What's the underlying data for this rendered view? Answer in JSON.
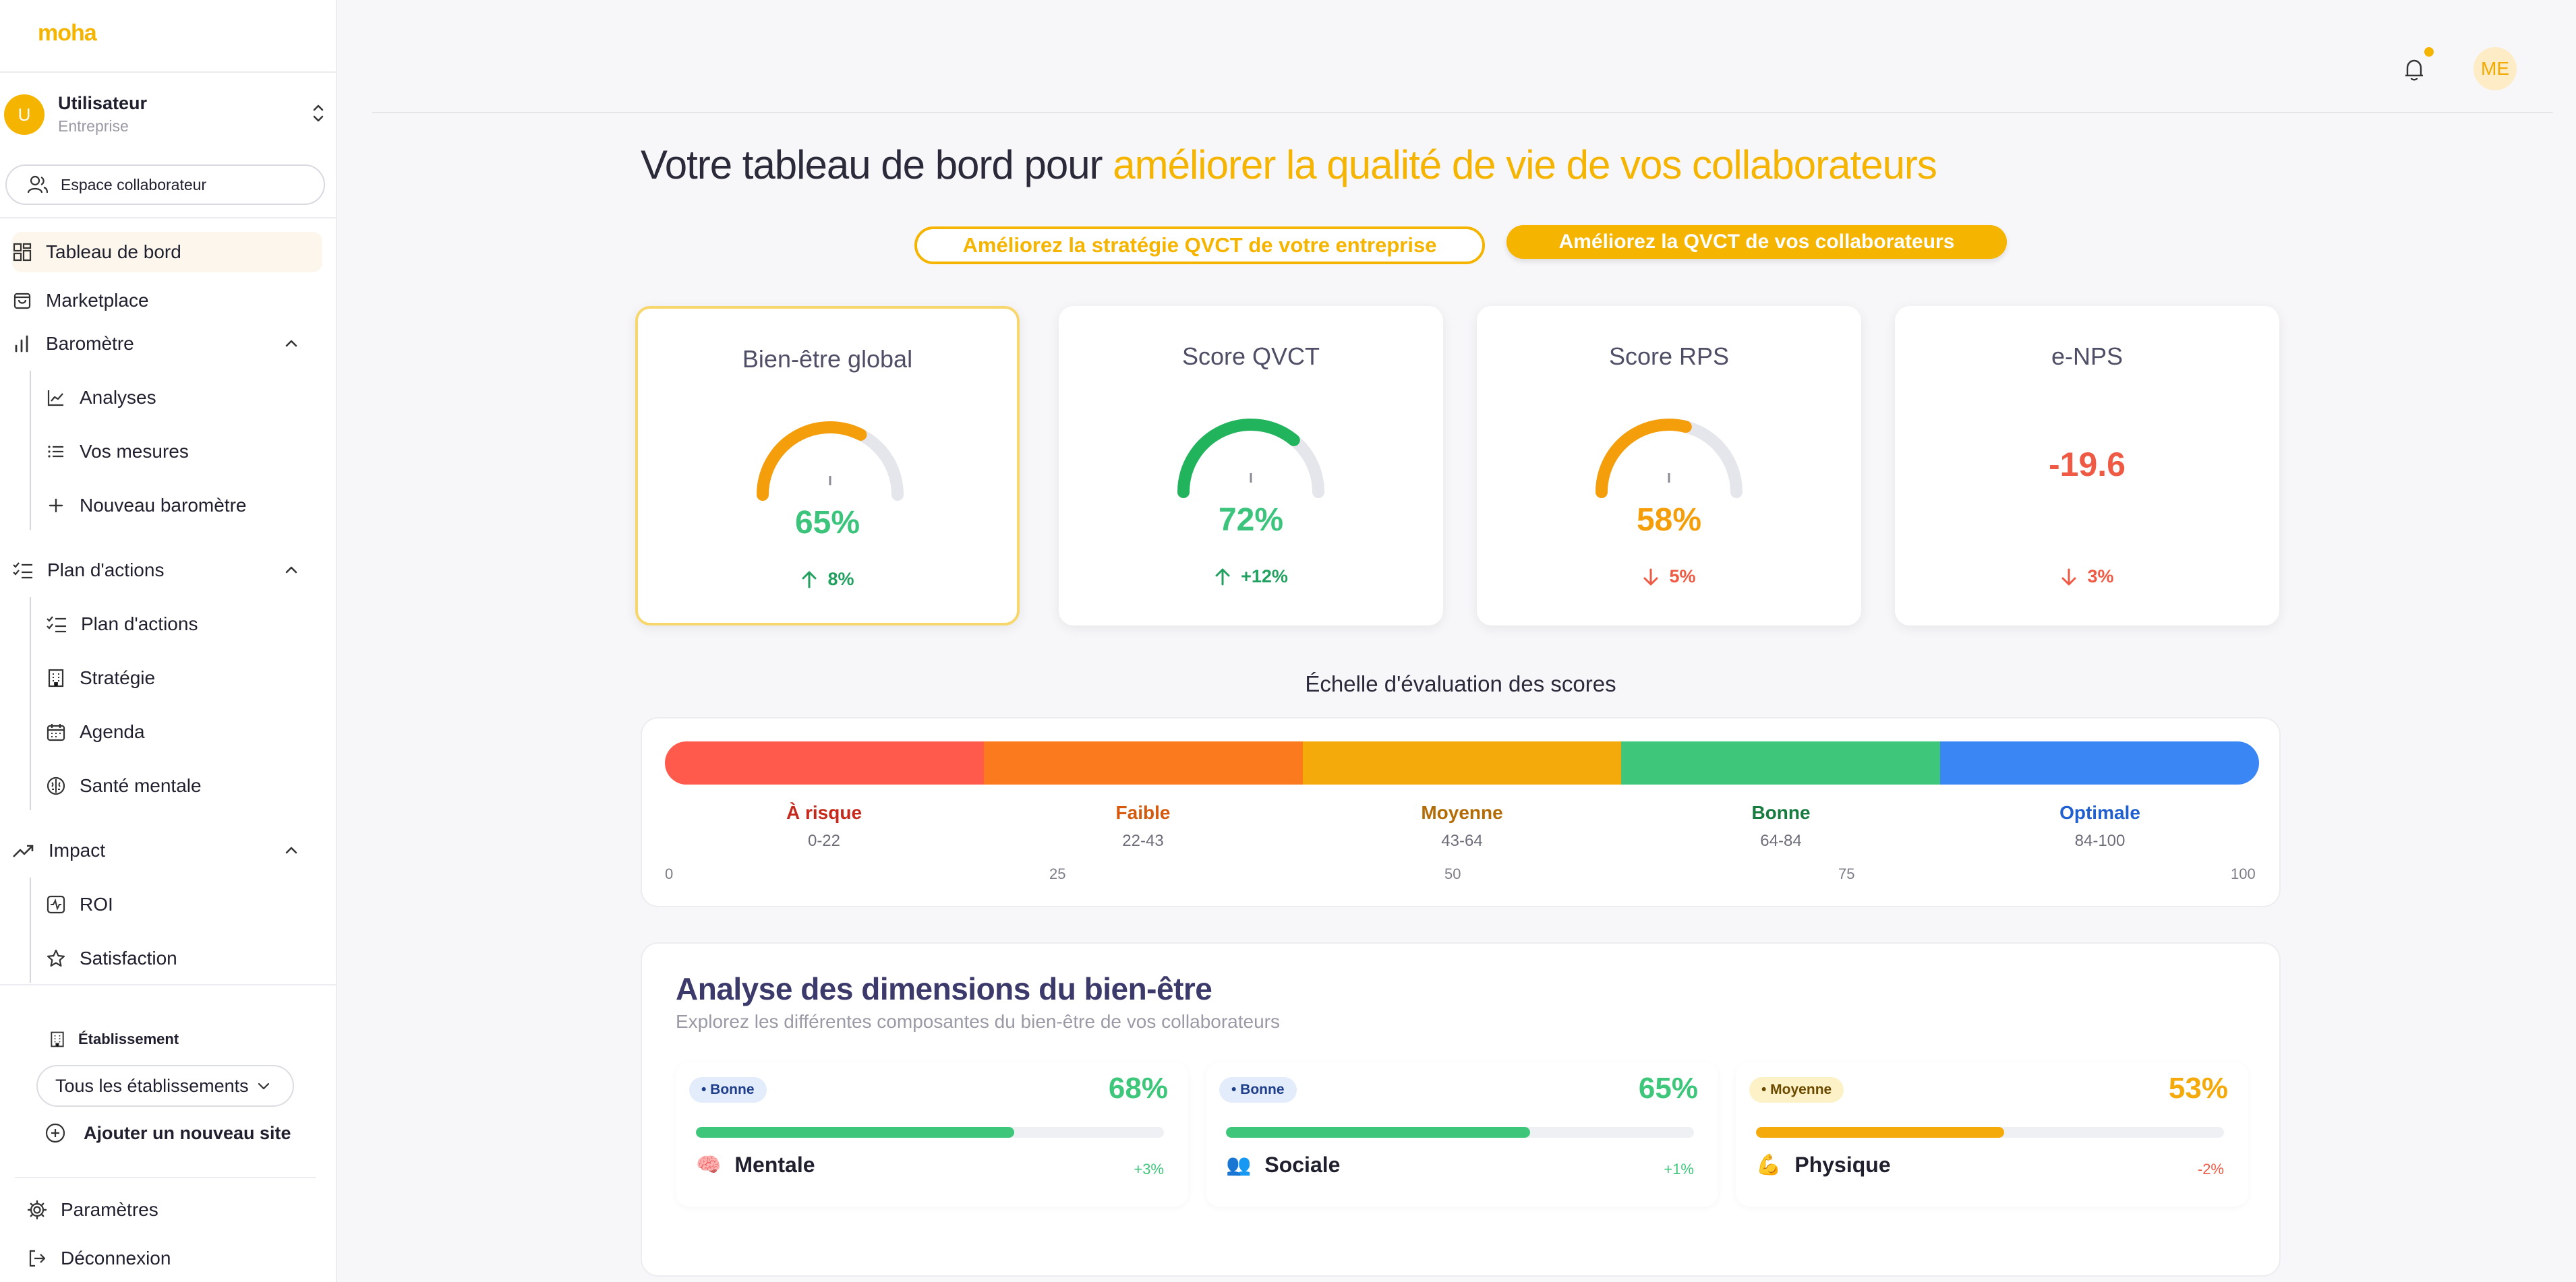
{
  "brand": {
    "logo_text": "moha",
    "accent": "#f5b400"
  },
  "user": {
    "initial": "U",
    "name": "Utilisateur",
    "subtitle": "Entreprise"
  },
  "sidebar": {
    "espace_label": "Espace collaborateur",
    "nav": {
      "dashboard": "Tableau de bord",
      "marketplace": "Marketplace",
      "barometre": "Baromètre",
      "analyses": "Analyses",
      "mesures": "Vos mesures",
      "nouveau_barometre": "Nouveau baromètre",
      "plan_actions": "Plan d'actions",
      "plan_actions_sub": "Plan d'actions",
      "strategie": "Stratégie",
      "agenda": "Agenda",
      "sante_mentale": "Santé mentale",
      "impact": "Impact",
      "roi": "ROI",
      "satisfaction": "Satisfaction"
    },
    "etablissement_label": "Établissement",
    "etablissement_value": "Tous les établissements",
    "add_site": "Ajouter un nouveau site",
    "parametres": "Paramètres",
    "deconnexion": "Déconnexion"
  },
  "topbar": {
    "avatar_initials": "ME",
    "notification_dot": true
  },
  "header": {
    "headline_start": "Votre tableau de bord pour ",
    "headline_accent": "améliorer la qualité de vie de vos collaborateurs",
    "btn_strategy": "Améliorez la stratégie QVCT de votre entreprise",
    "btn_collab": "Améliorez la QVCT de vos collaborateurs"
  },
  "kpis": [
    {
      "title": "Bien-être global",
      "value": "65%",
      "gauge": 0.65,
      "color": "#f59e0b",
      "value_color": "#3cc47c",
      "trend": "8%",
      "trend_dir": "up",
      "trend_color": "#22a060"
    },
    {
      "title": "Score QVCT",
      "value": "72%",
      "gauge": 0.72,
      "color": "#21b45c",
      "value_color": "#3cc47c",
      "trend": "+12%",
      "trend_dir": "up",
      "trend_color": "#22a060"
    },
    {
      "title": "Score RPS",
      "value": "58%",
      "gauge": 0.58,
      "color": "#f59e0b",
      "value_color": "#f59e0b",
      "trend": "5%",
      "trend_dir": "down",
      "trend_color": "#ef5a45"
    },
    {
      "title": "e-NPS",
      "value": "-19.6",
      "value_color": "#ef5a45",
      "trend": "3%",
      "trend_dir": "down",
      "trend_color": "#ef5a45"
    }
  ],
  "scale": {
    "title": "Échelle d'évaluation des scores",
    "levels": [
      {
        "label": "À risque",
        "range": "0-22",
        "color": "#ff5a4c",
        "text_color": "#c6281c"
      },
      {
        "label": "Faible",
        "range": "22-43",
        "color": "#fb7a1d",
        "text_color": "#d55a0e"
      },
      {
        "label": "Moyenne",
        "range": "43-64",
        "color": "#f5aa0b",
        "text_color": "#b36b06"
      },
      {
        "label": "Bonne",
        "range": "64-84",
        "color": "#3ec77b",
        "text_color": "#177a3e"
      },
      {
        "label": "Optimale",
        "range": "84-100",
        "color": "#3a86f4",
        "text_color": "#1f5fd0"
      }
    ],
    "ticks": [
      "0",
      "25",
      "50",
      "75",
      "100"
    ]
  },
  "dimensions": {
    "title": "Analyse des dimensions du bien-être",
    "subtitle": "Explorez les différentes composantes du bien-être de vos collaborateurs",
    "items": [
      {
        "badge": "• Bonne",
        "badge_bg": "#e2ecfb",
        "badge_color": "#1f3f8a",
        "pct": "68%",
        "fill": 0.68,
        "color": "#3ec77b",
        "emoji": "🧠",
        "name": "Mentale",
        "delta": "+3%",
        "delta_color": "#3ec77b"
      },
      {
        "badge": "• Bonne",
        "badge_bg": "#e2ecfb",
        "badge_color": "#1f3f8a",
        "pct": "65%",
        "fill": 0.65,
        "color": "#3ec77b",
        "emoji": "👥",
        "name": "Sociale",
        "delta": "+1%",
        "delta_color": "#3ec77b"
      },
      {
        "badge": "• Moyenne",
        "badge_bg": "#fdf2c7",
        "badge_color": "#6b4a00",
        "pct": "53%",
        "fill": 0.53,
        "color": "#f5aa0b",
        "emoji": "💪",
        "name": "Physique",
        "delta": "-2%",
        "delta_color": "#ef5a45"
      }
    ]
  }
}
